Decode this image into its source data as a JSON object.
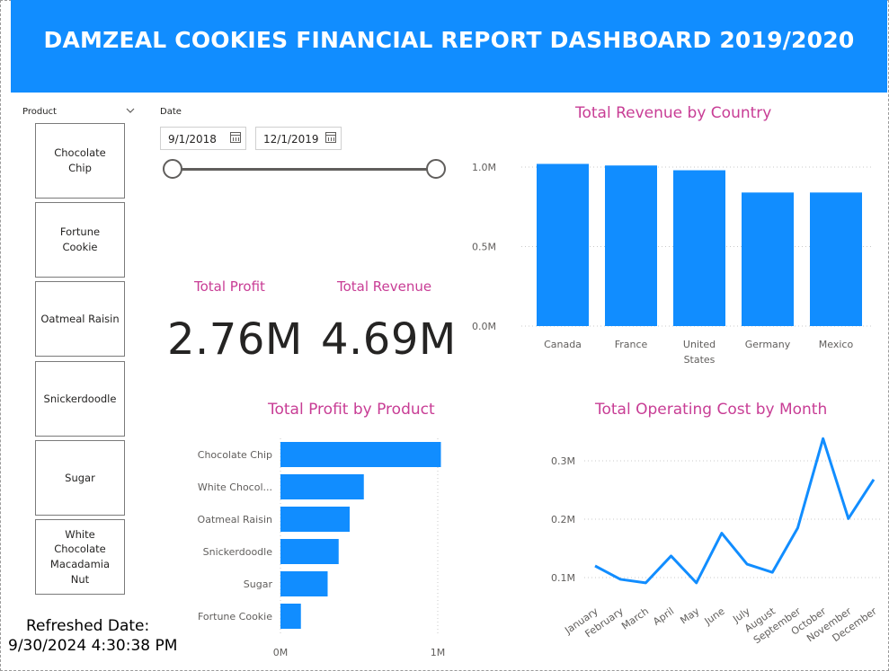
{
  "header": {
    "title": "DAMZEAL COOKIES FINANCIAL REPORT DASHBOARD 2019/2020"
  },
  "product_slicer": {
    "title": "Product",
    "items": [
      {
        "id": "chocolate-chip",
        "label": "Chocolate\nChip"
      },
      {
        "id": "fortune-cookie",
        "label": "Fortune\nCookie"
      },
      {
        "id": "oatmeal-raisin",
        "label": "Oatmeal Raisin"
      },
      {
        "id": "snickerdoodle",
        "label": "Snickerdoodle"
      },
      {
        "id": "sugar",
        "label": "Sugar"
      },
      {
        "id": "white-chocolate-macadamia-nut",
        "label": "White\nChocolate\nMacadamia\nNut"
      }
    ]
  },
  "date_slicer": {
    "title": "Date",
    "start": "9/1/2018",
    "end": "12/1/2019"
  },
  "kpis": {
    "profit": {
      "label": "Total Profit",
      "value": "2.76M"
    },
    "revenue": {
      "label": "Total Revenue",
      "value": "4.69M"
    }
  },
  "refresh": {
    "label": "Refreshed Date:",
    "value": "9/30/2024 4:30:38 PM"
  },
  "colors": {
    "header": "#118DFF",
    "bar": "#118DFF",
    "title": "#C83D95",
    "grid": "#c8c8c8"
  },
  "chart_data": [
    {
      "id": "revenue-by-country",
      "type": "bar",
      "title": "Total Revenue by Country",
      "categories": [
        "Canada",
        "France",
        "United States",
        "Germany",
        "Mexico"
      ],
      "values": [
        1.02,
        1.01,
        0.98,
        0.84,
        0.84
      ],
      "unit": "M",
      "ylim": [
        0,
        1.0
      ],
      "yticks": [
        "0.0M",
        "0.5M",
        "1.0M"
      ],
      "grid": true
    },
    {
      "id": "profit-by-product",
      "type": "bar",
      "orientation": "horizontal",
      "title": "Total Profit by Product",
      "categories": [
        "Chocolate Chip",
        "White Chocol...",
        "Oatmeal Raisin",
        "Snickerdoodle",
        "Sugar",
        "Fortune Cookie"
      ],
      "values": [
        1.02,
        0.53,
        0.44,
        0.37,
        0.3,
        0.13
      ],
      "unit": "M",
      "xlim": [
        0,
        1
      ],
      "xticks": [
        "0M",
        "1M"
      ],
      "grid": true
    },
    {
      "id": "operating-cost-by-month",
      "type": "line",
      "title": "Total Operating Cost by Month",
      "categories": [
        "January",
        "February",
        "March",
        "April",
        "May",
        "June",
        "July",
        "August",
        "September",
        "October",
        "November",
        "December"
      ],
      "values": [
        0.12,
        0.097,
        0.091,
        0.137,
        0.091,
        0.176,
        0.123,
        0.109,
        0.185,
        0.338,
        0.201,
        0.268
      ],
      "unit": "M",
      "ylim": [
        0.05,
        0.35
      ],
      "yticks": [
        "0.1M",
        "0.2M",
        "0.3M"
      ],
      "grid": true
    }
  ]
}
